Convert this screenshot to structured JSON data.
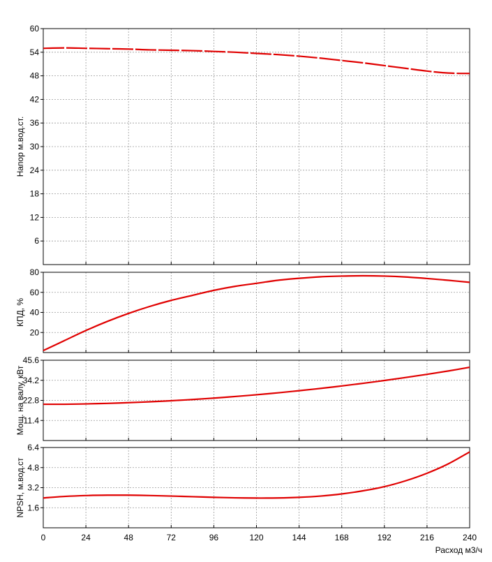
{
  "chart_data": {
    "type": "line",
    "x_axis": {
      "label": "Расход м3/ч",
      "range": [
        0,
        240
      ],
      "ticks": [
        0,
        24,
        48,
        72,
        96,
        120,
        144,
        168,
        192,
        216,
        240
      ],
      "tick_labels": [
        "0",
        "24",
        "48",
        "72",
        "96",
        "120",
        "144",
        "168",
        "192",
        "216",
        "240"
      ]
    },
    "grid": true,
    "line_color": "#e00000",
    "panels": [
      {
        "id": "head",
        "ylabel": "Напор м.вод.ст.",
        "ylim": [
          0,
          60
        ],
        "yticks": [
          6,
          12,
          18,
          24,
          30,
          36,
          42,
          48,
          54,
          60
        ],
        "ytick_labels": [
          "6",
          "12",
          "18",
          "24",
          "30",
          "36",
          "42",
          "48",
          "54",
          "60"
        ],
        "dashed": true,
        "x": [
          0,
          12,
          24,
          36,
          48,
          60,
          72,
          84,
          96,
          108,
          120,
          132,
          144,
          156,
          168,
          180,
          192,
          204,
          216,
          228,
          240
        ],
        "y": [
          55.0,
          55.1,
          55.0,
          54.9,
          54.8,
          54.6,
          54.5,
          54.4,
          54.2,
          54.0,
          53.7,
          53.4,
          53.0,
          52.5,
          51.9,
          51.3,
          50.6,
          49.9,
          49.2,
          48.7,
          48.6
        ]
      },
      {
        "id": "efficiency",
        "ylabel": "КПД, %",
        "ylim": [
          0,
          80
        ],
        "yticks": [
          20,
          40,
          60,
          80
        ],
        "ytick_labels": [
          "20",
          "40",
          "60",
          "80"
        ],
        "dashed": false,
        "x": [
          0,
          12,
          24,
          36,
          48,
          60,
          72,
          84,
          96,
          108,
          120,
          132,
          144,
          156,
          168,
          180,
          192,
          204,
          216,
          228,
          240
        ],
        "y": [
          2,
          12,
          22,
          31,
          39,
          46,
          52,
          57,
          62,
          66,
          69,
          72,
          74,
          75.5,
          76.2,
          76.5,
          76.2,
          75.3,
          73.8,
          72,
          70
        ]
      },
      {
        "id": "power",
        "ylabel": "Мощ. на валу, кВт",
        "ylim": [
          0,
          45.6
        ],
        "yticks": [
          11.4,
          22.8,
          34.2,
          45.6
        ],
        "ytick_labels": [
          "11.4",
          "22.8",
          "34.2",
          "45.6"
        ],
        "dashed": false,
        "x": [
          0,
          12,
          24,
          36,
          48,
          60,
          72,
          84,
          96,
          108,
          120,
          132,
          144,
          156,
          168,
          180,
          192,
          204,
          216,
          228,
          240
        ],
        "y": [
          20.6,
          20.6,
          20.8,
          21.1,
          21.5,
          22.0,
          22.6,
          23.3,
          24.1,
          25.0,
          26.0,
          27.1,
          28.3,
          29.6,
          31.0,
          32.5,
          34.1,
          35.8,
          37.6,
          39.5,
          41.6
        ]
      },
      {
        "id": "npsh",
        "ylabel": "NPSH, м.вод.ст",
        "ylim": [
          0,
          6.4
        ],
        "yticks": [
          1.6,
          3.2,
          4.8,
          6.4
        ],
        "ytick_labels": [
          "1.6",
          "3.2",
          "4.8",
          "6.4"
        ],
        "dashed": false,
        "x": [
          0,
          12,
          24,
          36,
          48,
          60,
          72,
          84,
          96,
          108,
          120,
          132,
          144,
          156,
          168,
          180,
          192,
          204,
          216,
          228,
          240
        ],
        "y": [
          2.38,
          2.5,
          2.57,
          2.6,
          2.6,
          2.57,
          2.53,
          2.48,
          2.43,
          2.39,
          2.37,
          2.38,
          2.43,
          2.53,
          2.7,
          2.95,
          3.28,
          3.75,
          4.35,
          5.1,
          6.05
        ]
      }
    ]
  }
}
